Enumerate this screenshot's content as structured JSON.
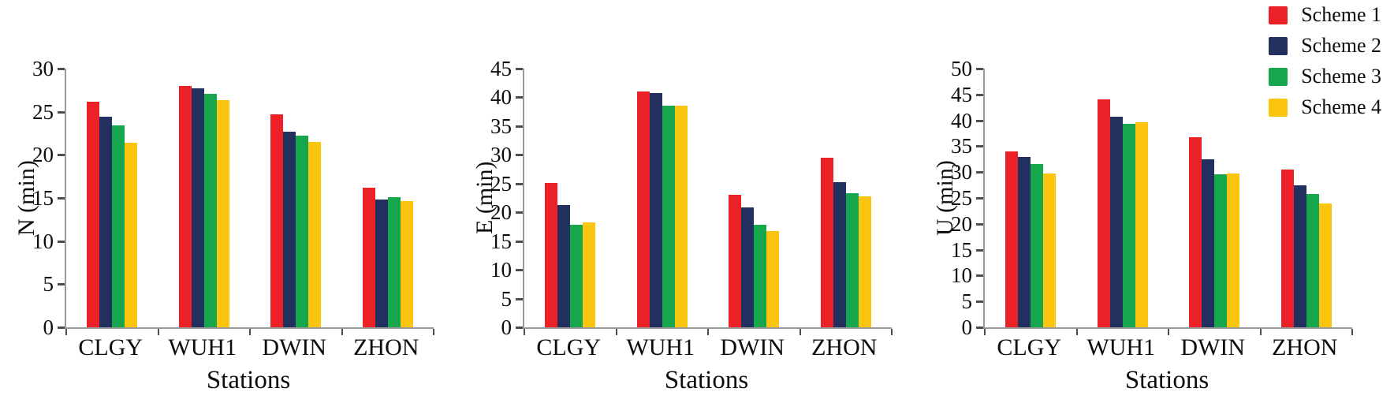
{
  "figure": {
    "background": "#ffffff",
    "axis_color": "#9a9a9a",
    "tick_color": "#4d4d4d"
  },
  "legend": {
    "position": "top-right",
    "items": [
      {
        "label": "Scheme 1",
        "color": "#EC2127"
      },
      {
        "label": "Scheme 2",
        "color": "#21305F"
      },
      {
        "label": "Scheme 3",
        "color": "#16A74C"
      },
      {
        "label": "Scheme 4",
        "color": "#FBC40F"
      }
    ]
  },
  "chart_data": [
    {
      "type": "bar",
      "title": "",
      "ylabel": "N (min)",
      "xlabel": "Stations",
      "categories": [
        "CLGY",
        "WUH1",
        "DWIN",
        "ZHON"
      ],
      "ylim": [
        0,
        30
      ],
      "ytick_step": 5,
      "grid": false,
      "legend_position": "figure-top-right",
      "series": [
        {
          "name": "Scheme 1",
          "values": [
            26.2,
            28.0,
            24.7,
            16.2
          ]
        },
        {
          "name": "Scheme 2",
          "values": [
            24.4,
            27.7,
            22.7,
            14.8
          ]
        },
        {
          "name": "Scheme 3",
          "values": [
            23.4,
            27.1,
            22.2,
            15.1
          ]
        },
        {
          "name": "Scheme 4",
          "values": [
            21.4,
            26.3,
            21.5,
            14.6
          ]
        }
      ]
    },
    {
      "type": "bar",
      "title": "",
      "ylabel": "E (min)",
      "xlabel": "Stations",
      "categories": [
        "CLGY",
        "WUH1",
        "DWIN",
        "ZHON"
      ],
      "ylim": [
        0,
        45
      ],
      "ytick_step": 5,
      "grid": false,
      "legend_position": "figure-top-right",
      "series": [
        {
          "name": "Scheme 1",
          "values": [
            25.1,
            41.0,
            23.0,
            29.5
          ]
        },
        {
          "name": "Scheme 2",
          "values": [
            21.3,
            40.7,
            20.9,
            25.2
          ]
        },
        {
          "name": "Scheme 3",
          "values": [
            17.8,
            38.6,
            17.8,
            23.3
          ]
        },
        {
          "name": "Scheme 4",
          "values": [
            18.2,
            38.6,
            16.7,
            22.8
          ]
        }
      ]
    },
    {
      "type": "bar",
      "title": "",
      "ylabel": "U (min)",
      "xlabel": "Stations",
      "categories": [
        "CLGY",
        "WUH1",
        "DWIN",
        "ZHON"
      ],
      "ylim": [
        0,
        50
      ],
      "ytick_step": 5,
      "grid": false,
      "legend_position": "figure-top-right",
      "series": [
        {
          "name": "Scheme 1",
          "values": [
            34.0,
            44.0,
            36.7,
            30.5
          ]
        },
        {
          "name": "Scheme 2",
          "values": [
            33.0,
            40.7,
            32.5,
            27.4
          ]
        },
        {
          "name": "Scheme 3",
          "values": [
            31.5,
            39.4,
            29.6,
            25.7
          ]
        },
        {
          "name": "Scheme 4",
          "values": [
            29.8,
            39.7,
            29.8,
            23.9
          ]
        }
      ]
    }
  ]
}
